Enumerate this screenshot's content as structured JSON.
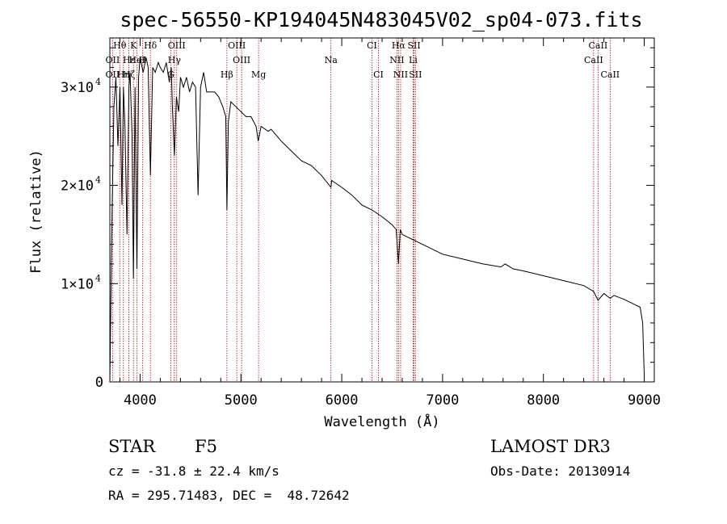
{
  "chart_data": {
    "type": "line",
    "title": "spec-56550-KP194045N483045V02_sp04-073.fits",
    "xlabel": "Wavelength (Å)",
    "ylabel": "Flux (relative)",
    "xlim": [
      3700,
      9100
    ],
    "ylim": [
      0,
      35000
    ],
    "x_ticks": [
      {
        "value": 4000,
        "label": "4000"
      },
      {
        "value": 5000,
        "label": "5000"
      },
      {
        "value": 6000,
        "label": "6000"
      },
      {
        "value": 7000,
        "label": "7000"
      },
      {
        "value": 8000,
        "label": "8000"
      },
      {
        "value": 9000,
        "label": "9000"
      }
    ],
    "y_ticks": [
      {
        "value": 0,
        "label": "0"
      },
      {
        "value": 10000,
        "label": "1×10",
        "exp": "4"
      },
      {
        "value": 20000,
        "label": "2×10",
        "exp": "4"
      },
      {
        "value": 30000,
        "label": "3×10",
        "exp": "4"
      }
    ],
    "series": [
      {
        "name": "spectrum",
        "x": [
          3700,
          3705,
          3720,
          3740,
          3760,
          3780,
          3800,
          3820,
          3835,
          3850,
          3870,
          3889,
          3900,
          3920,
          3934,
          3950,
          3968,
          3985,
          4000,
          4030,
          4060,
          4080,
          4102,
          4125,
          4150,
          4180,
          4200,
          4230,
          4260,
          4290,
          4310,
          4320,
          4340,
          4360,
          4383,
          4400,
          4430,
          4460,
          4490,
          4520,
          4550,
          4575,
          4600,
          4630,
          4660,
          4700,
          4740,
          4780,
          4820,
          4850,
          4861,
          4875,
          4900,
          4950,
          5000,
          5050,
          5100,
          5150,
          5172,
          5200,
          5270,
          5300,
          5400,
          5500,
          5600,
          5700,
          5800,
          5893,
          5900,
          6000,
          6100,
          6200,
          6300,
          6400,
          6500,
          6540,
          6563,
          6580,
          6600,
          6700,
          6800,
          7000,
          7200,
          7400,
          7580,
          7620,
          7700,
          7800,
          8000,
          8200,
          8400,
          8498,
          8542,
          8600,
          8662,
          8700,
          8800,
          8880,
          8960,
          8985,
          9000
        ],
        "y": [
          0,
          4000,
          16000,
          28000,
          31000,
          24000,
          30000,
          18000,
          30000,
          26000,
          15000,
          30000,
          31500,
          25000,
          10500,
          30000,
          11500,
          31000,
          33000,
          31500,
          33000,
          32000,
          21000,
          32000,
          31500,
          32500,
          32000,
          31500,
          32500,
          30500,
          32000,
          28000,
          23000,
          29000,
          27500,
          31000,
          30000,
          31000,
          29500,
          30500,
          30000,
          19000,
          30000,
          31500,
          29500,
          29500,
          29500,
          29000,
          28000,
          27000,
          17500,
          26500,
          28500,
          28000,
          27500,
          27000,
          27000,
          26000,
          24500,
          26000,
          25500,
          25700,
          24500,
          23500,
          22500,
          22000,
          21000,
          19800,
          20500,
          19800,
          19000,
          18000,
          17500,
          16800,
          16000,
          15500,
          12000,
          15500,
          15000,
          14500,
          14000,
          13000,
          12500,
          12000,
          11700,
          12000,
          11500,
          11300,
          10800,
          10300,
          9800,
          9200,
          8300,
          9000,
          8500,
          8800,
          8400,
          8000,
          7600,
          6000,
          800
        ]
      }
    ],
    "spectral_lines": [
      {
        "name": "Hθ",
        "x": 3798,
        "row": 0
      },
      {
        "name": "K",
        "x": 3934,
        "row": 0
      },
      {
        "name": "Hδ",
        "x": 4102,
        "row": 0
      },
      {
        "name": "OIII",
        "x": 4363,
        "row": 0
      },
      {
        "name": "OIII",
        "x": 4959,
        "row": 0
      },
      {
        "name": "CI",
        "x": 6300,
        "row": 0
      },
      {
        "name": "Hα",
        "x": 6563,
        "row": 0
      },
      {
        "name": "SII",
        "x": 6717,
        "row": 0
      },
      {
        "name": "CaII",
        "x": 8542,
        "row": 0
      },
      {
        "name": "OII",
        "x": 3727,
        "row": 1
      },
      {
        "name": "Hε",
        "x": 3889,
        "row": 1
      },
      {
        "name": "HeI",
        "x": 3970,
        "row": 1
      },
      {
        "name": "H",
        "x": 4026,
        "row": 1
      },
      {
        "name": "Hγ",
        "x": 4340,
        "row": 1
      },
      {
        "name": "OIII",
        "x": 5007,
        "row": 1
      },
      {
        "name": "Na",
        "x": 5893,
        "row": 1
      },
      {
        "name": "NII",
        "x": 6548,
        "row": 1
      },
      {
        "name": "Li",
        "x": 6708,
        "row": 1
      },
      {
        "name": "CaII",
        "x": 8498,
        "row": 1
      },
      {
        "name": "OII",
        "x": 3727,
        "row": 2
      },
      {
        "name": "Hη",
        "x": 3835,
        "row": 2
      },
      {
        "name": "Hζ",
        "x": 3889,
        "row": 2
      },
      {
        "name": "G",
        "x": 4304,
        "row": 2
      },
      {
        "name": "Hβ",
        "x": 4861,
        "row": 2
      },
      {
        "name": "Mg",
        "x": 5175,
        "row": 2
      },
      {
        "name": "CI",
        "x": 6364,
        "row": 2
      },
      {
        "name": "NII",
        "x": 6584,
        "row": 2
      },
      {
        "name": "SII",
        "x": 6731,
        "row": 2
      },
      {
        "name": "CaII",
        "x": 8662,
        "row": 2
      }
    ]
  },
  "info": {
    "class": "STAR",
    "subclass": "F5",
    "survey": "LAMOST DR3",
    "cz": "cz = -31.8 ± 22.4 km/s",
    "obs_date": "Obs-Date: 20130914",
    "coords": "RA = 295.71483, DEC =  48.72642"
  },
  "colors": {
    "spectrum": "#000000",
    "line_markers": "#c00000",
    "text": "#000000"
  }
}
